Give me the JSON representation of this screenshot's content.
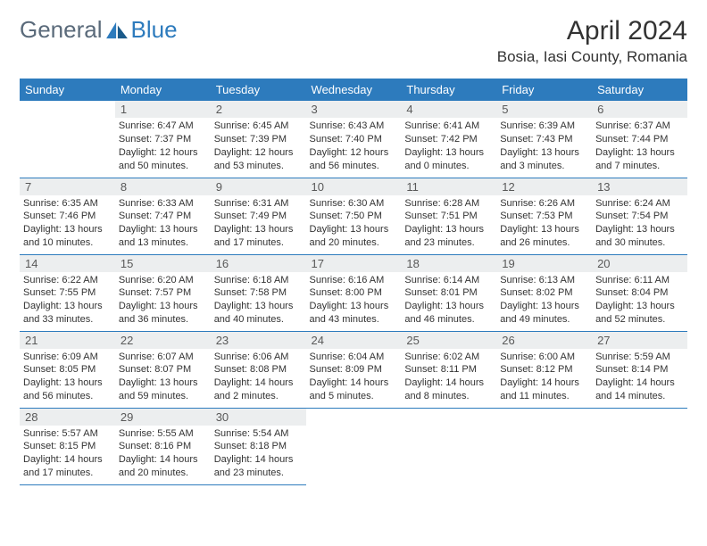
{
  "brand": {
    "part1": "General",
    "part2": "Blue"
  },
  "title": "April 2024",
  "location": "Bosia, Iasi County, Romania",
  "colors": {
    "header_bg": "#2d7bbd",
    "header_text": "#ffffff",
    "daynum_bg": "#eceeef",
    "rule": "#2d7bbd",
    "text": "#333333"
  },
  "weekdays": [
    "Sunday",
    "Monday",
    "Tuesday",
    "Wednesday",
    "Thursday",
    "Friday",
    "Saturday"
  ],
  "weeks": [
    [
      null,
      {
        "n": "1",
        "sr": "6:47 AM",
        "ss": "7:37 PM",
        "dl": "12 hours and 50 minutes."
      },
      {
        "n": "2",
        "sr": "6:45 AM",
        "ss": "7:39 PM",
        "dl": "12 hours and 53 minutes."
      },
      {
        "n": "3",
        "sr": "6:43 AM",
        "ss": "7:40 PM",
        "dl": "12 hours and 56 minutes."
      },
      {
        "n": "4",
        "sr": "6:41 AM",
        "ss": "7:42 PM",
        "dl": "13 hours and 0 minutes."
      },
      {
        "n": "5",
        "sr": "6:39 AM",
        "ss": "7:43 PM",
        "dl": "13 hours and 3 minutes."
      },
      {
        "n": "6",
        "sr": "6:37 AM",
        "ss": "7:44 PM",
        "dl": "13 hours and 7 minutes."
      }
    ],
    [
      {
        "n": "7",
        "sr": "6:35 AM",
        "ss": "7:46 PM",
        "dl": "13 hours and 10 minutes."
      },
      {
        "n": "8",
        "sr": "6:33 AM",
        "ss": "7:47 PM",
        "dl": "13 hours and 13 minutes."
      },
      {
        "n": "9",
        "sr": "6:31 AM",
        "ss": "7:49 PM",
        "dl": "13 hours and 17 minutes."
      },
      {
        "n": "10",
        "sr": "6:30 AM",
        "ss": "7:50 PM",
        "dl": "13 hours and 20 minutes."
      },
      {
        "n": "11",
        "sr": "6:28 AM",
        "ss": "7:51 PM",
        "dl": "13 hours and 23 minutes."
      },
      {
        "n": "12",
        "sr": "6:26 AM",
        "ss": "7:53 PM",
        "dl": "13 hours and 26 minutes."
      },
      {
        "n": "13",
        "sr": "6:24 AM",
        "ss": "7:54 PM",
        "dl": "13 hours and 30 minutes."
      }
    ],
    [
      {
        "n": "14",
        "sr": "6:22 AM",
        "ss": "7:55 PM",
        "dl": "13 hours and 33 minutes."
      },
      {
        "n": "15",
        "sr": "6:20 AM",
        "ss": "7:57 PM",
        "dl": "13 hours and 36 minutes."
      },
      {
        "n": "16",
        "sr": "6:18 AM",
        "ss": "7:58 PM",
        "dl": "13 hours and 40 minutes."
      },
      {
        "n": "17",
        "sr": "6:16 AM",
        "ss": "8:00 PM",
        "dl": "13 hours and 43 minutes."
      },
      {
        "n": "18",
        "sr": "6:14 AM",
        "ss": "8:01 PM",
        "dl": "13 hours and 46 minutes."
      },
      {
        "n": "19",
        "sr": "6:13 AM",
        "ss": "8:02 PM",
        "dl": "13 hours and 49 minutes."
      },
      {
        "n": "20",
        "sr": "6:11 AM",
        "ss": "8:04 PM",
        "dl": "13 hours and 52 minutes."
      }
    ],
    [
      {
        "n": "21",
        "sr": "6:09 AM",
        "ss": "8:05 PM",
        "dl": "13 hours and 56 minutes."
      },
      {
        "n": "22",
        "sr": "6:07 AM",
        "ss": "8:07 PM",
        "dl": "13 hours and 59 minutes."
      },
      {
        "n": "23",
        "sr": "6:06 AM",
        "ss": "8:08 PM",
        "dl": "14 hours and 2 minutes."
      },
      {
        "n": "24",
        "sr": "6:04 AM",
        "ss": "8:09 PM",
        "dl": "14 hours and 5 minutes."
      },
      {
        "n": "25",
        "sr": "6:02 AM",
        "ss": "8:11 PM",
        "dl": "14 hours and 8 minutes."
      },
      {
        "n": "26",
        "sr": "6:00 AM",
        "ss": "8:12 PM",
        "dl": "14 hours and 11 minutes."
      },
      {
        "n": "27",
        "sr": "5:59 AM",
        "ss": "8:14 PM",
        "dl": "14 hours and 14 minutes."
      }
    ],
    [
      {
        "n": "28",
        "sr": "5:57 AM",
        "ss": "8:15 PM",
        "dl": "14 hours and 17 minutes."
      },
      {
        "n": "29",
        "sr": "5:55 AM",
        "ss": "8:16 PM",
        "dl": "14 hours and 20 minutes."
      },
      {
        "n": "30",
        "sr": "5:54 AM",
        "ss": "8:18 PM",
        "dl": "14 hours and 23 minutes."
      },
      null,
      null,
      null,
      null
    ]
  ],
  "labels": {
    "sunrise": "Sunrise:",
    "sunset": "Sunset:",
    "daylight": "Daylight:"
  }
}
